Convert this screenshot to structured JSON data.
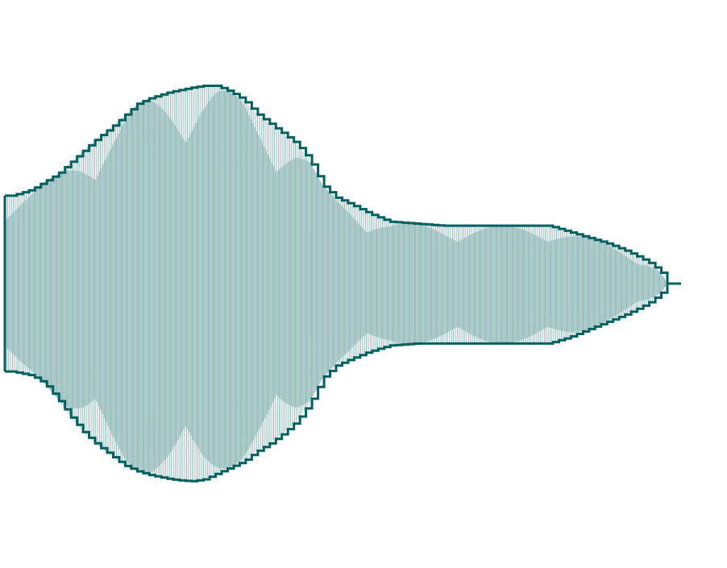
{
  "colors": {
    "envelope": "#00605f",
    "fill": "#7aa9aa",
    "background": "#ffffff"
  },
  "chart_data": {
    "type": "area",
    "title": "",
    "xlabel": "",
    "ylabel": "",
    "grid": false,
    "legend": "none",
    "xlim": [
      0,
      1
    ],
    "ylim": [
      -1,
      1
    ],
    "series": [
      {
        "x": [
          0,
          0.01,
          0.04,
          0.06,
          0.08,
          0.1,
          0.12,
          0.14,
          0.16,
          0.18,
          0.2,
          0.22,
          0.25,
          0.28,
          0.3,
          0.32,
          0.34,
          0.36,
          0.38,
          0.4,
          0.42,
          0.44,
          0.46,
          0.48,
          0.5,
          0.52,
          0.55,
          0.58,
          0.62,
          0.66,
          0.7,
          0.74,
          0.78,
          0.82,
          0.85,
          0.88,
          0.91,
          0.94,
          0.97,
          0.99,
          1.0
        ],
        "upper": [
          0.44,
          0.44,
          0.47,
          0.51,
          0.55,
          0.61,
          0.67,
          0.73,
          0.78,
          0.84,
          0.9,
          0.93,
          0.96,
          0.98,
          0.99,
          0.99,
          0.96,
          0.92,
          0.85,
          0.8,
          0.75,
          0.7,
          0.62,
          0.49,
          0.43,
          0.4,
          0.35,
          0.31,
          0.3,
          0.29,
          0.29,
          0.29,
          0.29,
          0.29,
          0.26,
          0.23,
          0.2,
          0.16,
          0.11,
          0.06,
          0.0
        ],
        "lower": [
          -0.44,
          -0.44,
          -0.46,
          -0.5,
          -0.58,
          -0.67,
          -0.75,
          -0.81,
          -0.86,
          -0.91,
          -0.94,
          -0.96,
          -0.98,
          -0.99,
          -0.98,
          -0.95,
          -0.92,
          -0.89,
          -0.84,
          -0.8,
          -0.75,
          -0.69,
          -0.6,
          -0.47,
          -0.41,
          -0.38,
          -0.34,
          -0.31,
          -0.3,
          -0.3,
          -0.3,
          -0.3,
          -0.3,
          -0.3,
          -0.27,
          -0.23,
          -0.19,
          -0.15,
          -0.1,
          -0.05,
          0.0
        ]
      }
    ]
  }
}
